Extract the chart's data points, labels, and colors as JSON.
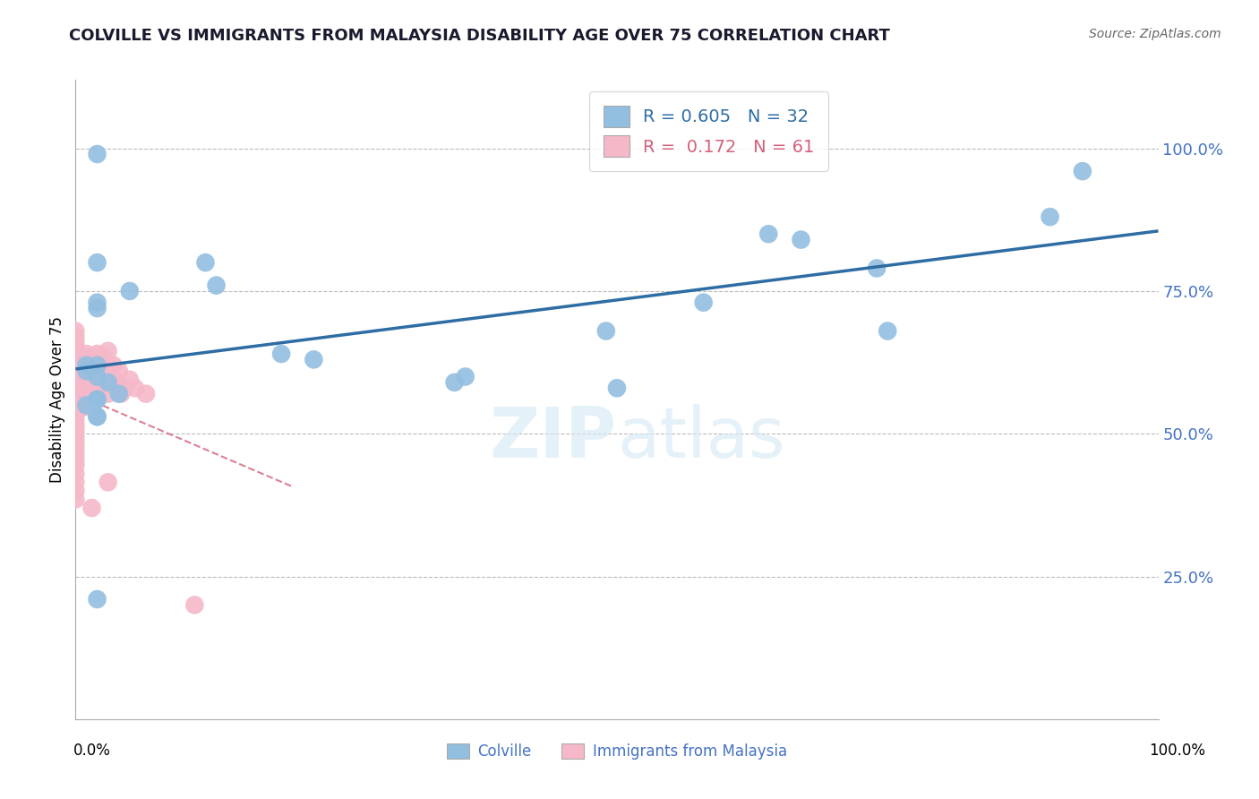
{
  "title": "COLVILLE VS IMMIGRANTS FROM MALAYSIA DISABILITY AGE OVER 75 CORRELATION CHART",
  "source": "Source: ZipAtlas.com",
  "ylabel": "Disability Age Over 75",
  "legend_blue_R": "0.605",
  "legend_blue_N": "32",
  "legend_pink_R": "0.172",
  "legend_pink_N": "61",
  "colville_x": [
    0.02,
    0.12,
    0.02,
    0.13,
    0.05,
    0.02,
    0.02,
    0.01,
    0.02,
    0.01,
    0.02,
    0.03,
    0.04,
    0.02,
    0.02,
    0.01,
    0.02,
    0.02,
    0.19,
    0.22,
    0.36,
    0.35,
    0.49,
    0.5,
    0.58,
    0.64,
    0.67,
    0.74,
    0.75,
    0.9,
    0.93,
    0.02
  ],
  "colville_y": [
    0.99,
    0.8,
    0.8,
    0.76,
    0.75,
    0.73,
    0.72,
    0.62,
    0.62,
    0.61,
    0.6,
    0.59,
    0.57,
    0.56,
    0.56,
    0.55,
    0.53,
    0.53,
    0.64,
    0.63,
    0.6,
    0.59,
    0.68,
    0.58,
    0.73,
    0.85,
    0.84,
    0.79,
    0.68,
    0.88,
    0.96,
    0.21
  ],
  "malaysia_x": [
    0.0,
    0.0,
    0.0,
    0.0,
    0.0,
    0.0,
    0.0,
    0.0,
    0.0,
    0.0,
    0.0,
    0.0,
    0.0,
    0.0,
    0.0,
    0.0,
    0.0,
    0.0,
    0.0,
    0.0,
    0.0,
    0.0,
    0.0,
    0.0,
    0.0,
    0.0,
    0.0,
    0.0,
    0.0,
    0.005,
    0.005,
    0.005,
    0.005,
    0.008,
    0.008,
    0.008,
    0.01,
    0.01,
    0.015,
    0.015,
    0.015,
    0.015,
    0.015,
    0.018,
    0.02,
    0.02,
    0.025,
    0.025,
    0.03,
    0.03,
    0.03,
    0.03,
    0.035,
    0.038,
    0.04,
    0.042,
    0.045,
    0.05,
    0.055,
    0.065,
    0.11
  ],
  "malaysia_y": [
    0.68,
    0.67,
    0.66,
    0.65,
    0.64,
    0.635,
    0.625,
    0.615,
    0.605,
    0.595,
    0.585,
    0.575,
    0.565,
    0.555,
    0.545,
    0.535,
    0.525,
    0.515,
    0.505,
    0.495,
    0.485,
    0.475,
    0.465,
    0.455,
    0.445,
    0.43,
    0.415,
    0.4,
    0.385,
    0.62,
    0.6,
    0.575,
    0.545,
    0.63,
    0.605,
    0.575,
    0.64,
    0.59,
    0.635,
    0.61,
    0.575,
    0.545,
    0.37,
    0.62,
    0.64,
    0.595,
    0.635,
    0.58,
    0.645,
    0.61,
    0.57,
    0.415,
    0.62,
    0.59,
    0.61,
    0.57,
    0.58,
    0.595,
    0.58,
    0.57,
    0.2
  ],
  "blue_color": "#92BEE0",
  "pink_color": "#F5B8C8",
  "blue_line_color": "#2E6DA4",
  "pink_line_color": "#D4607A",
  "bg_color": "#FFFFFF",
  "grid_color": "#BBBBBB",
  "xlim": [
    0.0,
    1.0
  ],
  "ylim": [
    0.0,
    1.12
  ],
  "yticks": [
    0.25,
    0.5,
    0.75,
    1.0
  ],
  "ytick_labels": [
    "25.0%",
    "50.0%",
    "75.0%",
    "100.0%"
  ],
  "blue_trendline_x": [
    0.0,
    1.0
  ],
  "blue_trendline_y": [
    0.555,
    0.92
  ],
  "pink_trendline_x": [
    0.0,
    0.2
  ],
  "pink_trendline_y": [
    0.535,
    0.65
  ]
}
